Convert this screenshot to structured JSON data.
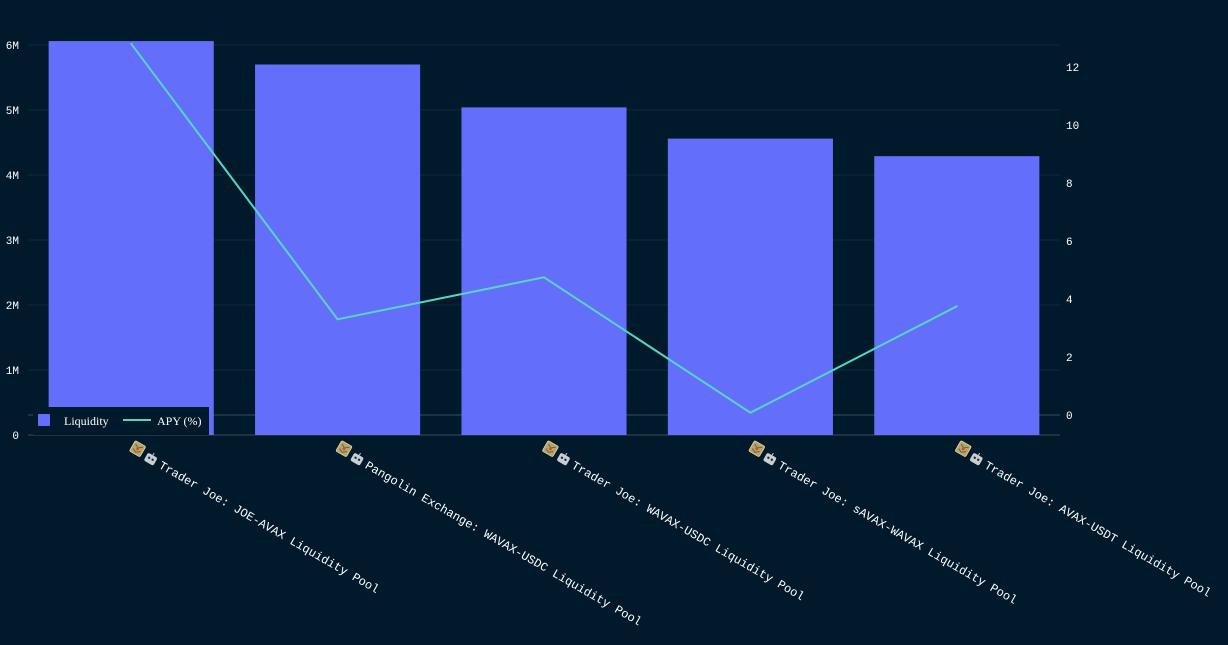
{
  "chart_data": {
    "type": "bar",
    "categories": [
      "Trader Joe: JOE-AVAX Liquidity Pool",
      "Pangolin Exchange: WAVAX-USDC Liquidity Pool",
      "Trader Joe: WAVAX-USDC Liquidity Pool",
      "Trader Joe: sAVAX-WAVAX Liquidity Pool",
      "Trader Joe: AVAX-USDT Liquidity Pool"
    ],
    "category_icons": [
      "map-icon",
      "robot-icon"
    ],
    "series": [
      {
        "name": "Liquidity",
        "type": "bar",
        "axis": "left",
        "values": [
          6060000,
          5700000,
          5040000,
          4560000,
          4290000
        ],
        "color": "#636efa"
      },
      {
        "name": "APY (%)",
        "type": "line",
        "axis": "right",
        "values": [
          12.8,
          3.3,
          4.75,
          0.08,
          3.75
        ],
        "color": "#55d6c2"
      }
    ],
    "y_left": {
      "ylim": [
        0,
        6000000
      ],
      "ticks": [
        0,
        1000000,
        2000000,
        3000000,
        4000000,
        5000000,
        6000000
      ],
      "tick_labels": [
        "0",
        "1M",
        "2M",
        "3M",
        "4M",
        "5M",
        "6M"
      ]
    },
    "y_right": {
      "ylim": [
        0,
        12
      ],
      "ticks": [
        0,
        2,
        4,
        6,
        8,
        10,
        12
      ],
      "tick_labels": [
        "0",
        "2",
        "4",
        "6",
        "8",
        "10",
        "12"
      ]
    },
    "legend": {
      "placement": "bottom-left",
      "entries": [
        "Liquidity",
        "APY (%)"
      ]
    },
    "grid": true,
    "colors": {
      "background": "#011a2b",
      "grid": "#0f2a3d",
      "zero_line": "#3a4a58",
      "text": "#ffffff"
    }
  }
}
